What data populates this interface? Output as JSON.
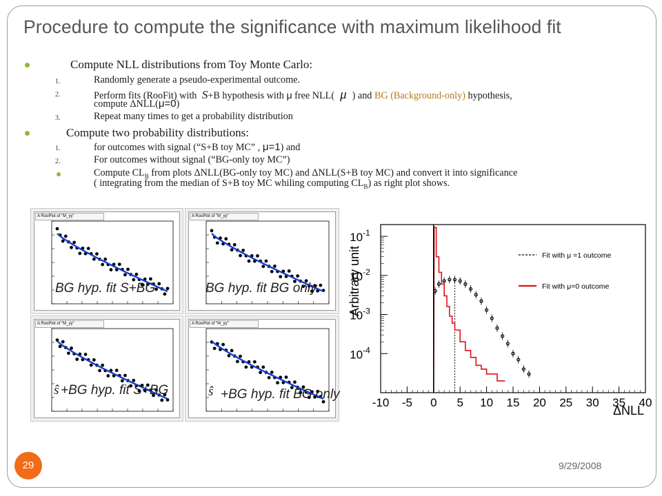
{
  "slide": {
    "title": "Procedure to compute the significance with maximum likelihood fit",
    "number": "29",
    "date": "9/29/2008"
  },
  "bullets": {
    "b1": "Compute NLL distributions from Toy Monte Carlo:",
    "b1_items": [
      {
        "n": "1.",
        "text": "Randomly generate a pseudo-experimental outcome."
      },
      {
        "n": "2.",
        "a": "Perform fits (RooFit) with",
        "s": "S",
        "b": "+B hypothesis with",
        "mu": "μ",
        "c": "free NLL(",
        "d": ") and",
        "bg": "BG (Background-only)",
        "e": "hypothesis,"
      },
      {
        "n": "",
        "a": "compute ΔNLL(",
        "mu0": "μ=0",
        "b": ")"
      },
      {
        "n": "3.",
        "text": "Repeat many times to get a probability distribution"
      }
    ],
    "b2": "Compute two probability distributions:",
    "b2_items": [
      {
        "n": "1.",
        "a": "for outcomes with signal (“S+B toy MC” ,",
        "mu1": "μ=1",
        "b": ") and"
      },
      {
        "n": "2.",
        "text": "For outcomes without signal (“BG-only toy MC”)"
      }
    ],
    "b3_line1a": "Compute CL",
    "b3_sub": "B",
    "b3_line1b": "from plots ΔNLL(BG-only toy MC) and ΔNLL(S+B toy MC) and convert it into significance",
    "b3_line2a": "( integrating from the median of S+B toy MC whiling computing  CL",
    "b3_line2b": ") as right plot shows."
  },
  "panels": {
    "header": "A RooPlot of \"M_γγ\"",
    "captions": [
      "BG hyp. fit S+BG",
      "BG hyp. fit BG only",
      "+BG hyp. fit S+BG",
      "+BG hyp. fit BG only"
    ],
    "shat": "ŝ",
    "colors": {
      "points": "#000000",
      "fit": "#1a3fd6"
    }
  },
  "chart_data": {
    "type": "line",
    "title": "",
    "xlabel": "ΔNLL",
    "ylabel": "Arbitrary unit",
    "xlim": [
      -10,
      40
    ],
    "ylim": [
      1e-05,
      0.2
    ],
    "yscale": "log",
    "x_ticks": [
      "-10",
      "-5",
      "0",
      "5",
      "10",
      "15",
      "20",
      "25",
      "30",
      "35",
      "40"
    ],
    "y_ticks": [
      {
        "base": "10",
        "exp": "-1",
        "value": 0.1
      },
      {
        "base": "10",
        "exp": "-2",
        "value": 0.01
      },
      {
        "base": "10",
        "exp": "-3",
        "value": 0.001
      },
      {
        "base": "10",
        "exp": "-4",
        "value": 0.0001
      }
    ],
    "legend_position": "top-right",
    "series": [
      {
        "name": "Fit with μ =1 outcome",
        "color": "#000000",
        "style": "points",
        "median": 4,
        "x": [
          0.3,
          1,
          2,
          3,
          4,
          5,
          6,
          7,
          8,
          9,
          10,
          11,
          12,
          13,
          14,
          15,
          16,
          17,
          18
        ],
        "y": [
          0.004,
          0.006,
          0.0072,
          0.0078,
          0.0078,
          0.0072,
          0.006,
          0.0045,
          0.0032,
          0.0022,
          0.0013,
          0.0008,
          0.00045,
          0.00028,
          0.00018,
          0.0001,
          7e-05,
          4e-05,
          3e-05
        ]
      },
      {
        "name": "Fit with μ=0 outcome",
        "color": "#e01010",
        "style": "hist",
        "median": 0,
        "x": [
          0.1,
          0.5,
          1,
          1.5,
          2,
          2.5,
          3,
          3.5,
          4,
          5,
          6,
          7,
          8,
          9,
          10,
          11,
          12,
          13
        ],
        "y": [
          0.17,
          0.03,
          0.012,
          0.006,
          0.003,
          0.0016,
          0.0009,
          0.0006,
          0.0004,
          0.0002,
          0.00012,
          8e-05,
          5e-05,
          4e-05,
          3e-05,
          3e-05,
          2e-05,
          2e-05
        ]
      }
    ]
  }
}
